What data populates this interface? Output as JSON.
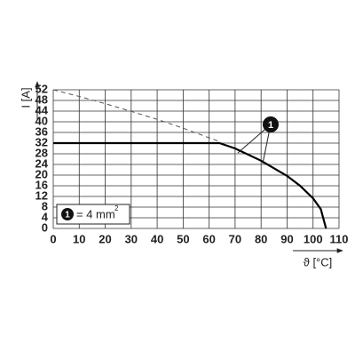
{
  "chart_data": {
    "type": "line",
    "y_label": "I [A]",
    "x_label": "ϑ [°C]",
    "xlim": [
      0,
      110
    ],
    "ylim": [
      0,
      52
    ],
    "xticks": [
      0,
      10,
      20,
      30,
      40,
      50,
      60,
      70,
      80,
      90,
      100,
      110
    ],
    "yticks": [
      0,
      4,
      8,
      12,
      16,
      20,
      24,
      28,
      32,
      36,
      40,
      44,
      48,
      52
    ],
    "grid": true,
    "series": [
      {
        "color": "#555555",
        "dashed": true,
        "x": [
          0,
          10,
          20,
          30,
          40,
          50,
          60,
          64
        ],
        "values": [
          52,
          49.5,
          46.8,
          43.9,
          40.9,
          37.6,
          34,
          32.6
        ]
      },
      {
        "color": "#000000",
        "dashed": false,
        "x": [
          0,
          64,
          70,
          80,
          90,
          95,
          100,
          103,
          105
        ],
        "values": [
          32,
          32,
          30,
          25.4,
          19.7,
          16,
          11.3,
          7.2,
          0
        ]
      }
    ],
    "annotation": "1",
    "legend": {
      "marker": "1",
      "text": "= 4 mm",
      "superscript": "2"
    }
  }
}
